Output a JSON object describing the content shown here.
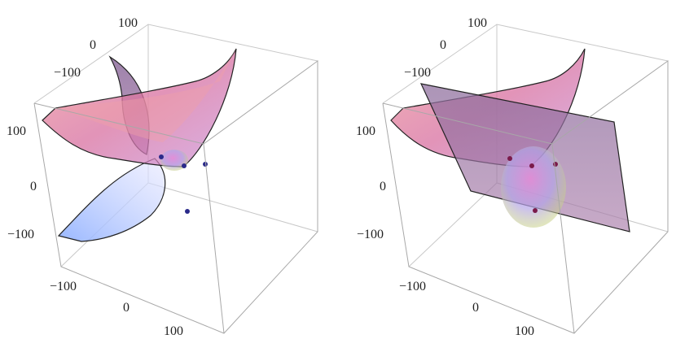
{
  "figure": {
    "panels": [
      {
        "id": "left",
        "ticks": {
          "top_axis": [
            "100",
            "0",
            "−100"
          ],
          "left_axis": [
            "100",
            "0",
            "−100"
          ],
          "bottom_axis": [
            "−100",
            "0",
            "100"
          ]
        },
        "point_color": "#2a2a8a"
      },
      {
        "id": "right",
        "ticks": {
          "top_axis": [
            "100",
            "0",
            "−100"
          ],
          "left_axis": [
            "100",
            "0",
            "−100"
          ],
          "bottom_axis": [
            "−100",
            "0",
            "100"
          ]
        },
        "point_color": "#7a1a4a"
      }
    ],
    "colors": {
      "surface_pink": "#e7859a",
      "surface_purple": "#8a6a9a",
      "surface_blue": "#9fb6ff",
      "box_line": "#b0b0b0",
      "ellipsoid": "#b79ad8"
    }
  }
}
